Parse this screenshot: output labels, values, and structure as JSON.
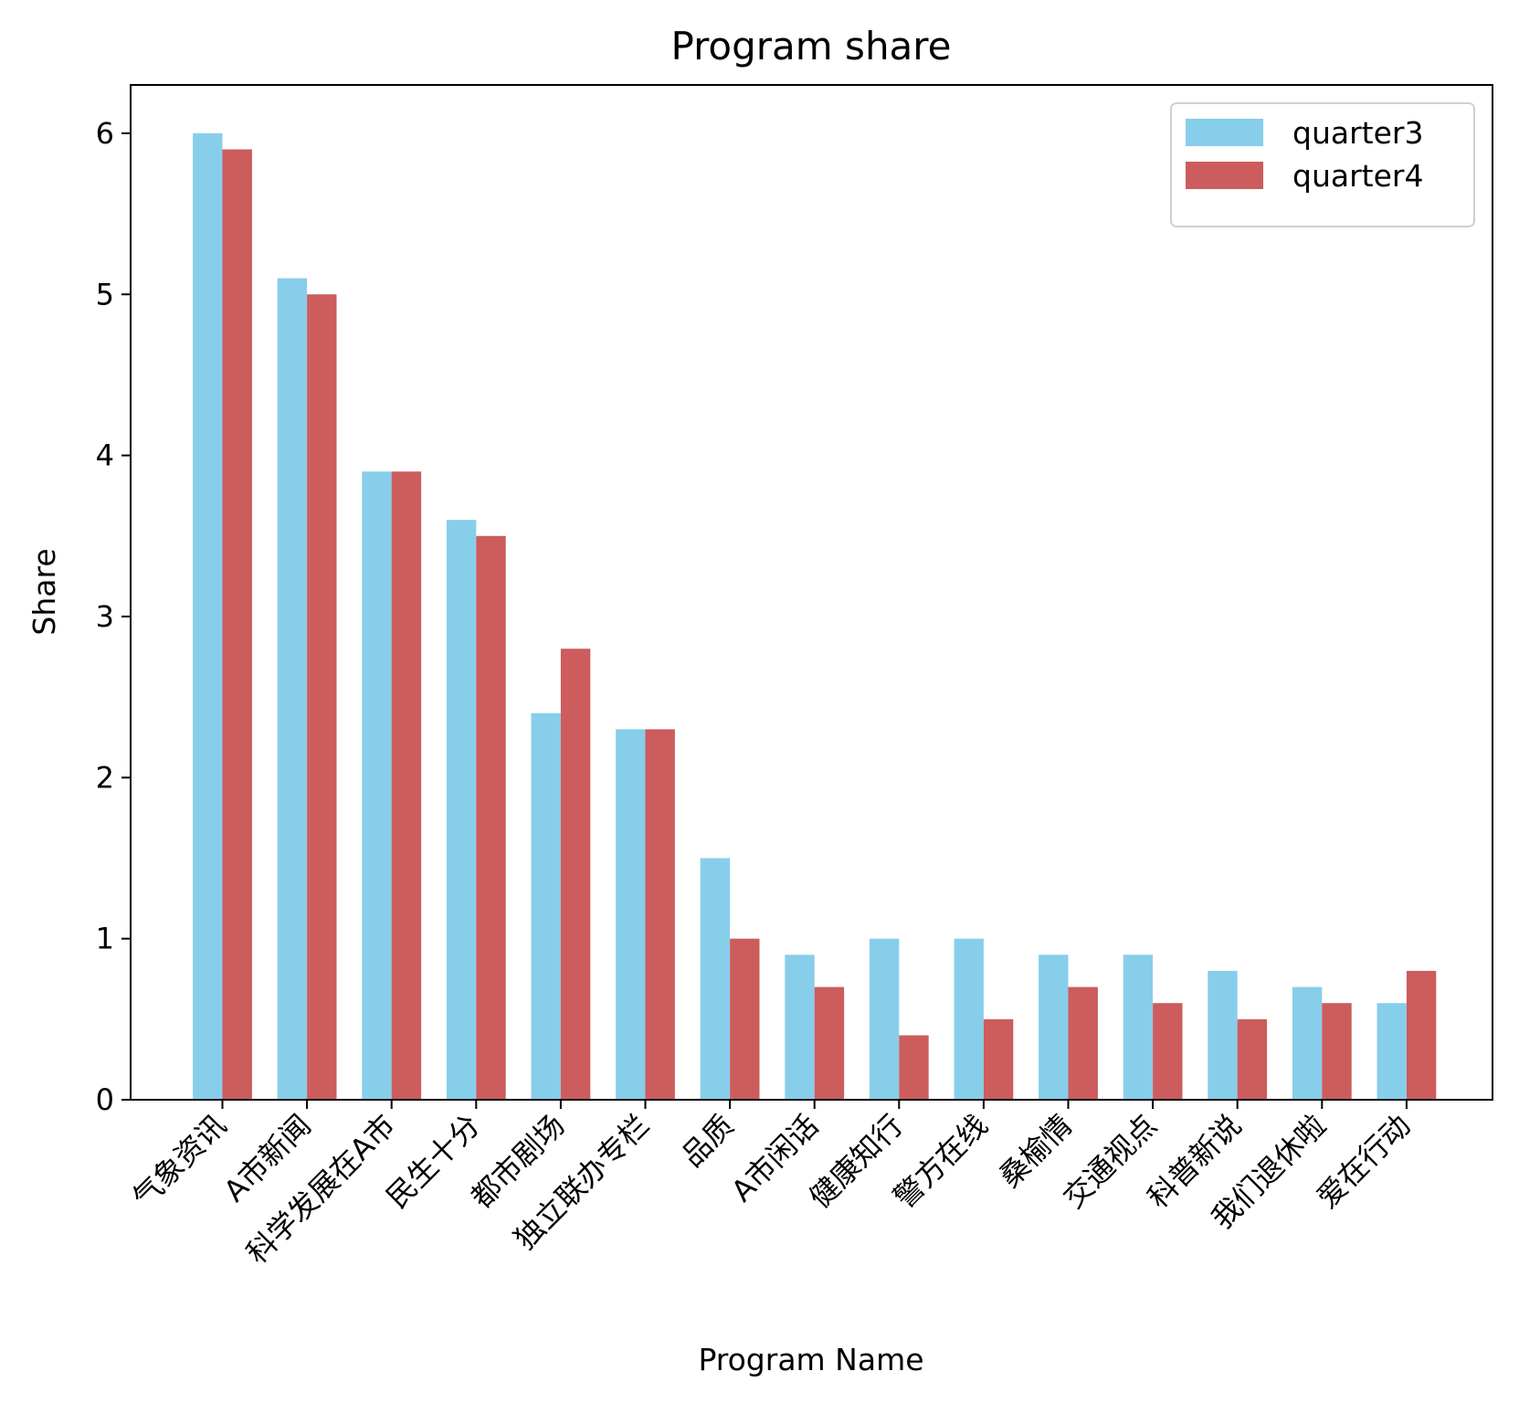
{
  "chart_data": {
    "type": "bar",
    "title": "Program share",
    "xlabel": "Program Name",
    "ylabel": "Share",
    "ylim": [
      0,
      6.3
    ],
    "yticks": [
      0,
      1,
      2,
      3,
      4,
      5,
      6
    ],
    "grid": false,
    "legend_position": "top-right",
    "categories": [
      "气象资讯",
      "A市新闻",
      "科学发展在A市",
      "民生十分",
      "都市剧场",
      "独立联办专栏",
      "品质",
      "A市闲话",
      "健康知行",
      "警方在线",
      "桑榆情",
      "交通视点",
      "科普新说",
      "我们退休啦",
      "爱在行动"
    ],
    "series": [
      {
        "name": "quarter3",
        "color": "#87ceeb",
        "values": [
          6.0,
          5.1,
          3.9,
          3.6,
          2.4,
          2.3,
          1.5,
          0.9,
          1.0,
          1.0,
          0.9,
          0.9,
          0.8,
          0.7,
          0.6
        ]
      },
      {
        "name": "quarter4",
        "color": "#cd5c5c",
        "values": [
          5.9,
          5.0,
          3.9,
          3.5,
          2.8,
          2.3,
          1.0,
          0.7,
          0.4,
          0.5,
          0.7,
          0.6,
          0.5,
          0.6,
          0.8
        ]
      }
    ]
  }
}
